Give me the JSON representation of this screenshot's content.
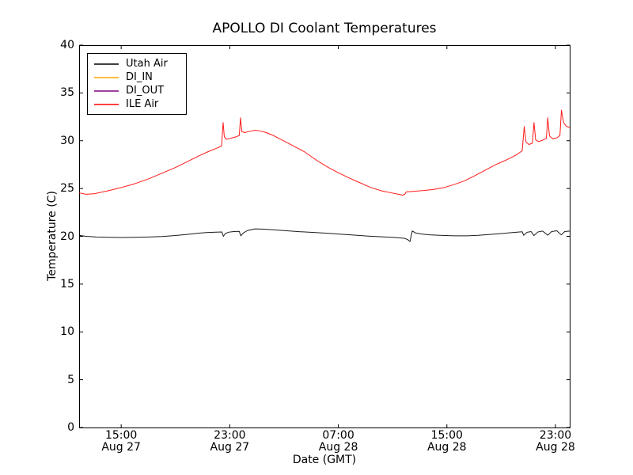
{
  "chart_data": {
    "type": "line",
    "title": "APOLLO DI Coolant Temperatures",
    "xlabel": "Date (GMT)",
    "ylabel": "Temperature (C)",
    "grid": false,
    "legend_position": "upper left",
    "x_unit_note": "hours since Aug 27 00:00 GMT",
    "xlim": [
      11.9,
      48.05
    ],
    "ylim": [
      0,
      40
    ],
    "y_ticks": [
      0,
      5,
      10,
      15,
      20,
      25,
      30,
      35,
      40
    ],
    "x_ticks": [
      {
        "value": 15,
        "time": "15:00",
        "date": "Aug 27"
      },
      {
        "value": 23,
        "time": "23:00",
        "date": "Aug 27"
      },
      {
        "value": 31,
        "time": "07:00",
        "date": "Aug 28"
      },
      {
        "value": 39,
        "time": "15:00",
        "date": "Aug 28"
      },
      {
        "value": 47,
        "time": "23:00",
        "date": "Aug 28"
      }
    ],
    "axis_color": "#000000",
    "background_color": "#ffffff",
    "series": [
      {
        "name": "Utah Air",
        "color": "#000000",
        "points": [
          [
            11.9,
            20.1
          ],
          [
            12.4,
            20.0
          ],
          [
            13.2,
            19.93
          ],
          [
            14,
            19.9
          ],
          [
            15,
            19.88
          ],
          [
            16,
            19.9
          ],
          [
            17,
            19.93
          ],
          [
            18,
            19.98
          ],
          [
            19,
            20.08
          ],
          [
            20,
            20.22
          ],
          [
            20.7,
            20.33
          ],
          [
            21.4,
            20.4
          ],
          [
            22.0,
            20.44
          ],
          [
            22.42,
            20.46
          ],
          [
            22.53,
            20.0
          ],
          [
            22.68,
            20.3
          ],
          [
            22.95,
            20.44
          ],
          [
            23.3,
            20.5
          ],
          [
            23.7,
            20.52
          ],
          [
            23.81,
            20.05
          ],
          [
            24.0,
            20.35
          ],
          [
            24.3,
            20.6
          ],
          [
            24.85,
            20.78
          ],
          [
            25.4,
            20.76
          ],
          [
            26.2,
            20.68
          ],
          [
            27.2,
            20.58
          ],
          [
            28.2,
            20.48
          ],
          [
            29.2,
            20.4
          ],
          [
            30.2,
            20.32
          ],
          [
            31.2,
            20.22
          ],
          [
            32.2,
            20.12
          ],
          [
            33.2,
            20.02
          ],
          [
            34.2,
            19.95
          ],
          [
            35.2,
            19.88
          ],
          [
            35.9,
            19.78
          ],
          [
            36.15,
            19.62
          ],
          [
            36.28,
            19.45
          ],
          [
            36.36,
            20.0
          ],
          [
            36.45,
            20.55
          ],
          [
            36.7,
            20.35
          ],
          [
            37.1,
            20.25
          ],
          [
            37.7,
            20.16
          ],
          [
            38.5,
            20.1
          ],
          [
            39.5,
            20.05
          ],
          [
            40.5,
            20.05
          ],
          [
            41.3,
            20.1
          ],
          [
            42.2,
            20.2
          ],
          [
            43.1,
            20.3
          ],
          [
            43.9,
            20.4
          ],
          [
            44.55,
            20.48
          ],
          [
            44.66,
            20.1
          ],
          [
            44.9,
            20.42
          ],
          [
            45.2,
            20.5
          ],
          [
            45.42,
            20.08
          ],
          [
            45.7,
            20.45
          ],
          [
            46.05,
            20.55
          ],
          [
            46.44,
            20.12
          ],
          [
            46.72,
            20.5
          ],
          [
            47.1,
            20.58
          ],
          [
            47.43,
            20.15
          ],
          [
            47.68,
            20.5
          ],
          [
            48.05,
            20.55
          ]
        ]
      },
      {
        "name": "DI_IN",
        "color": "#ffa500",
        "points": []
      },
      {
        "name": "DI_OUT",
        "color": "#800080",
        "points": []
      },
      {
        "name": "ILE Air",
        "color": "#ff0000",
        "points": [
          [
            11.9,
            24.55
          ],
          [
            12.4,
            24.4
          ],
          [
            13.0,
            24.45
          ],
          [
            14.0,
            24.75
          ],
          [
            15.0,
            25.1
          ],
          [
            16.0,
            25.5
          ],
          [
            17.0,
            26.0
          ],
          [
            18.0,
            26.6
          ],
          [
            19.0,
            27.2
          ],
          [
            20.0,
            27.9
          ],
          [
            20.7,
            28.4
          ],
          [
            21.4,
            28.85
          ],
          [
            22.0,
            29.2
          ],
          [
            22.4,
            29.45
          ],
          [
            22.51,
            31.9
          ],
          [
            22.6,
            30.4
          ],
          [
            22.75,
            30.15
          ],
          [
            23.05,
            30.25
          ],
          [
            23.45,
            30.4
          ],
          [
            23.7,
            30.55
          ],
          [
            23.79,
            32.4
          ],
          [
            23.89,
            30.95
          ],
          [
            24.1,
            30.85
          ],
          [
            24.5,
            31.0
          ],
          [
            24.9,
            31.1
          ],
          [
            25.3,
            31.0
          ],
          [
            25.7,
            30.85
          ],
          [
            26.2,
            30.55
          ],
          [
            26.9,
            30.05
          ],
          [
            27.7,
            29.45
          ],
          [
            28.5,
            28.85
          ],
          [
            29.4,
            27.95
          ],
          [
            30.2,
            27.25
          ],
          [
            31.0,
            26.65
          ],
          [
            31.8,
            26.1
          ],
          [
            32.6,
            25.6
          ],
          [
            33.4,
            25.1
          ],
          [
            34.2,
            24.75
          ],
          [
            34.9,
            24.55
          ],
          [
            35.5,
            24.38
          ],
          [
            35.75,
            24.3
          ],
          [
            35.9,
            24.4
          ],
          [
            36.0,
            24.65
          ],
          [
            36.5,
            24.7
          ],
          [
            37.2,
            24.78
          ],
          [
            38.0,
            24.9
          ],
          [
            38.8,
            25.1
          ],
          [
            39.6,
            25.45
          ],
          [
            40.3,
            25.8
          ],
          [
            41.0,
            26.3
          ],
          [
            41.8,
            26.9
          ],
          [
            42.6,
            27.5
          ],
          [
            43.4,
            28.0
          ],
          [
            44.1,
            28.5
          ],
          [
            44.55,
            28.95
          ],
          [
            44.7,
            31.5
          ],
          [
            44.82,
            29.9
          ],
          [
            45.05,
            29.6
          ],
          [
            45.3,
            29.75
          ],
          [
            45.42,
            31.9
          ],
          [
            45.54,
            30.1
          ],
          [
            45.75,
            29.9
          ],
          [
            46.05,
            30.05
          ],
          [
            46.33,
            30.25
          ],
          [
            46.43,
            32.4
          ],
          [
            46.56,
            30.5
          ],
          [
            46.8,
            30.2
          ],
          [
            47.1,
            30.3
          ],
          [
            47.33,
            30.55
          ],
          [
            47.44,
            33.2
          ],
          [
            47.6,
            31.9
          ],
          [
            47.8,
            31.5
          ],
          [
            48.05,
            31.4
          ]
        ]
      }
    ]
  }
}
